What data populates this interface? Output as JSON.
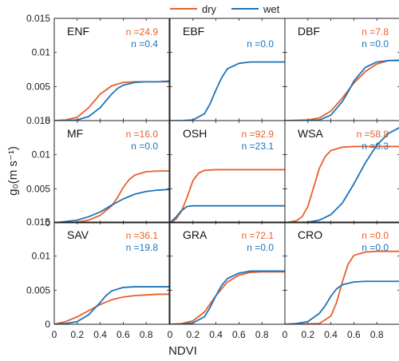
{
  "chart_data": {
    "type": "line",
    "xlabel": "NDVI",
    "ylabel": "g₀(m s⁻¹)",
    "xlim": [
      0,
      1
    ],
    "ylim": [
      0,
      0.015
    ],
    "xticks": [
      "0",
      "0.2",
      "0.4",
      "0.6",
      "0.8"
    ],
    "yticks": [
      "0",
      "0.005",
      "0.01",
      "0.015"
    ],
    "legend": {
      "position": "top-center",
      "entries": [
        {
          "name": "dry",
          "color": "#E8602C"
        },
        {
          "name": "wet",
          "color": "#1F73B8"
        }
      ]
    },
    "colors": {
      "dry": "#E8602C",
      "wet": "#1F73B8"
    },
    "panels": [
      {
        "name": "ENF",
        "dry_n": "n =24.9",
        "wet_n": "n =0.4",
        "series": [
          {
            "name": "dry",
            "x": [
              0,
              0.1,
              0.2,
              0.3,
              0.35,
              0.4,
              0.5,
              0.6,
              0.7,
              0.8,
              0.9,
              1.0
            ],
            "y": [
              0,
              0.0001,
              0.0005,
              0.0019,
              0.0029,
              0.0039,
              0.0051,
              0.0056,
              0.0057,
              0.0057,
              0.0057,
              0.0057
            ]
          },
          {
            "name": "wet",
            "x": [
              0,
              0.1,
              0.2,
              0.3,
              0.4,
              0.45,
              0.5,
              0.55,
              0.6,
              0.7,
              0.8,
              0.9,
              1.0
            ],
            "y": [
              0,
              0,
              0.0001,
              0.0006,
              0.0019,
              0.0029,
              0.0039,
              0.0047,
              0.0052,
              0.0056,
              0.0057,
              0.0057,
              0.0058
            ]
          }
        ]
      },
      {
        "name": "EBF",
        "dry_n": "",
        "wet_n": "n =0.0",
        "series": [
          {
            "name": "wet",
            "x": [
              0,
              0.1,
              0.2,
              0.3,
              0.35,
              0.4,
              0.45,
              0.5,
              0.6,
              0.7,
              0.8,
              0.9,
              1.0
            ],
            "y": [
              0,
              0,
              0.0001,
              0.001,
              0.0025,
              0.0045,
              0.0063,
              0.0076,
              0.0084,
              0.0086,
              0.0086,
              0.0086,
              0.0086
            ]
          }
        ]
      },
      {
        "name": "DBF",
        "dry_n": "n =7.8",
        "wet_n": "n =0.0",
        "series": [
          {
            "name": "dry",
            "x": [
              0,
              0.2,
              0.3,
              0.4,
              0.5,
              0.55,
              0.6,
              0.7,
              0.8,
              0.9,
              1.0
            ],
            "y": [
              0,
              0.0001,
              0.0004,
              0.0014,
              0.0033,
              0.0044,
              0.0055,
              0.0072,
              0.0083,
              0.0088,
              0.0089
            ]
          },
          {
            "name": "wet",
            "x": [
              0,
              0.2,
              0.3,
              0.4,
              0.5,
              0.55,
              0.6,
              0.7,
              0.8,
              0.9,
              1.0
            ],
            "y": [
              0,
              0,
              0.0001,
              0.0008,
              0.0028,
              0.0042,
              0.0058,
              0.0078,
              0.0086,
              0.0088,
              0.0088
            ]
          }
        ]
      },
      {
        "name": "MF",
        "dry_n": "n =16.0",
        "wet_n": "n =0.0",
        "series": [
          {
            "name": "dry",
            "x": [
              0,
              0.2,
              0.3,
              0.4,
              0.5,
              0.55,
              0.6,
              0.65,
              0.7,
              0.8,
              0.9,
              1.0
            ],
            "y": [
              0,
              0.0001,
              0.0004,
              0.0011,
              0.0025,
              0.0037,
              0.0052,
              0.0063,
              0.007,
              0.0075,
              0.0076,
              0.0076
            ]
          },
          {
            "name": "wet",
            "x": [
              0,
              0.2,
              0.3,
              0.4,
              0.5,
              0.6,
              0.7,
              0.8,
              0.9,
              1.0
            ],
            "y": [
              0,
              0.0004,
              0.0009,
              0.0016,
              0.0026,
              0.0035,
              0.0042,
              0.0046,
              0.0048,
              0.0049
            ]
          }
        ]
      },
      {
        "name": "OSH",
        "dry_n": "n =92.9",
        "wet_n": "n =23.1",
        "series": [
          {
            "name": "dry",
            "x": [
              0,
              0.05,
              0.1,
              0.15,
              0.2,
              0.25,
              0.3,
              0.4,
              0.5,
              0.6,
              0.8,
              1.0
            ],
            "y": [
              0,
              0.0005,
              0.0017,
              0.0038,
              0.0062,
              0.0073,
              0.0077,
              0.0078,
              0.0078,
              0.0078,
              0.0078,
              0.0078
            ]
          },
          {
            "name": "wet",
            "x": [
              0,
              0.05,
              0.1,
              0.15,
              0.2,
              0.3,
              0.5,
              0.7,
              1.0
            ],
            "y": [
              0,
              0.0008,
              0.0018,
              0.0024,
              0.0025,
              0.0025,
              0.0025,
              0.0025,
              0.0025
            ]
          }
        ]
      },
      {
        "name": "WSA",
        "dry_n": "n =58.8",
        "wet_n": "n =0.3",
        "series": [
          {
            "name": "dry",
            "x": [
              0,
              0.1,
              0.15,
              0.2,
              0.25,
              0.3,
              0.35,
              0.4,
              0.5,
              0.6,
              0.8,
              1.0
            ],
            "y": [
              0,
              0.0003,
              0.0009,
              0.0024,
              0.0052,
              0.008,
              0.0097,
              0.0106,
              0.0111,
              0.0112,
              0.0112,
              0.0112
            ]
          },
          {
            "name": "wet",
            "x": [
              0,
              0.2,
              0.3,
              0.4,
              0.5,
              0.6,
              0.7,
              0.8,
              0.9,
              1.0
            ],
            "y": [
              0,
              0.0001,
              0.0004,
              0.0012,
              0.0029,
              0.0057,
              0.0088,
              0.0114,
              0.0131,
              0.014
            ]
          }
        ]
      },
      {
        "name": "SAV",
        "dry_n": "n =36.1",
        "wet_n": "n =19.8",
        "series": [
          {
            "name": "dry",
            "x": [
              0,
              0.1,
              0.2,
              0.3,
              0.4,
              0.5,
              0.6,
              0.7,
              0.8,
              0.9,
              1.0
            ],
            "y": [
              0,
              0.0004,
              0.0011,
              0.002,
              0.0029,
              0.0036,
              0.004,
              0.0042,
              0.0043,
              0.0044,
              0.0044
            ]
          },
          {
            "name": "wet",
            "x": [
              0,
              0.1,
              0.2,
              0.3,
              0.4,
              0.45,
              0.5,
              0.6,
              0.7,
              0.8,
              1.0
            ],
            "y": [
              0,
              0.0001,
              0.0004,
              0.0014,
              0.0032,
              0.0042,
              0.0049,
              0.0054,
              0.0055,
              0.0055,
              0.0055
            ]
          }
        ]
      },
      {
        "name": "GRA",
        "dry_n": "n =72.1",
        "wet_n": "n =0.0",
        "series": [
          {
            "name": "dry",
            "x": [
              0,
              0.1,
              0.2,
              0.3,
              0.4,
              0.5,
              0.6,
              0.7,
              0.8,
              0.9,
              1.0
            ],
            "y": [
              0,
              0.0001,
              0.0005,
              0.0018,
              0.0042,
              0.0062,
              0.0072,
              0.0076,
              0.0077,
              0.0077,
              0.0077
            ]
          },
          {
            "name": "wet",
            "x": [
              0,
              0.1,
              0.2,
              0.3,
              0.35,
              0.4,
              0.45,
              0.5,
              0.6,
              0.7,
              0.8,
              0.9,
              1.0
            ],
            "y": [
              0,
              0,
              0.0002,
              0.0011,
              0.0025,
              0.0042,
              0.0057,
              0.0067,
              0.0075,
              0.0078,
              0.0078,
              0.0078,
              0.0078
            ]
          }
        ]
      },
      {
        "name": "CRO",
        "dry_n": "n =0.0",
        "wet_n": "n =0.0",
        "series": [
          {
            "name": "dry",
            "x": [
              0,
              0.3,
              0.4,
              0.45,
              0.5,
              0.55,
              0.6,
              0.7,
              0.8,
              1.0
            ],
            "y": [
              0,
              0.0001,
              0.0012,
              0.0032,
              0.0062,
              0.0088,
              0.0101,
              0.0106,
              0.0107,
              0.0107
            ]
          },
          {
            "name": "wet",
            "x": [
              0,
              0.1,
              0.2,
              0.3,
              0.35,
              0.4,
              0.45,
              0.5,
              0.6,
              0.7,
              0.8,
              1.0
            ],
            "y": [
              0,
              0.0001,
              0.0004,
              0.0016,
              0.0027,
              0.0041,
              0.0052,
              0.0058,
              0.0062,
              0.0063,
              0.0063,
              0.0063
            ]
          }
        ]
      }
    ]
  }
}
